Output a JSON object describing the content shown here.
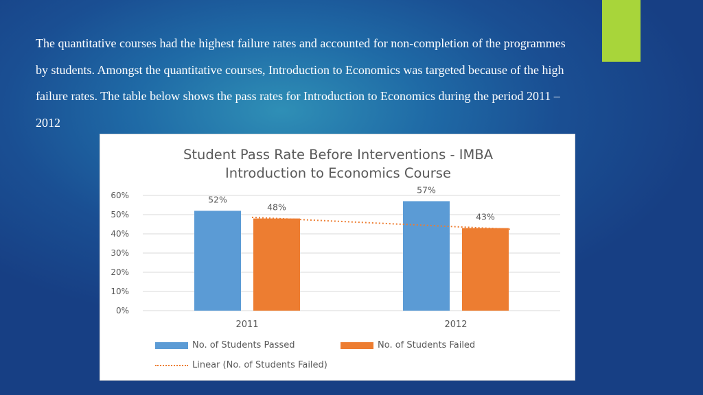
{
  "intro": {
    "lines": [
      "The quantitative courses had the highest failure rates and accounted for non-completion of the programmes",
      "by students. Amongst the quantitative courses, Introduction to Economics was targeted because of the high",
      "failure rates. The table below shows the pass rates for Introduction to Economics during the period 2011 –",
      "2012"
    ]
  },
  "colors": {
    "accent": "#a8d53a",
    "passed": "#5b9bd5",
    "failed": "#ed7d31",
    "gridline": "#d9d9d9",
    "text": "#595959"
  },
  "chart_data": {
    "type": "bar",
    "title_lines": [
      "Student Pass Rate Before Interventions - IMBA",
      "Introduction to Economics Course"
    ],
    "categories": [
      "2011",
      "2012"
    ],
    "series": [
      {
        "name": "No. of Students Passed",
        "values": [
          52,
          57
        ],
        "labels": [
          "52%",
          "57%"
        ],
        "color": "#5b9bd5"
      },
      {
        "name": "No. of Students Failed",
        "values": [
          48,
          43
        ],
        "labels": [
          "48%",
          "43%"
        ],
        "color": "#ed7d31"
      }
    ],
    "trendline": {
      "name": "Linear (No. of Students Failed)",
      "series": "No. of Students Failed",
      "style": "dotted"
    },
    "ylim": [
      0,
      60
    ],
    "yticks": [
      0,
      10,
      20,
      30,
      40,
      50,
      60
    ],
    "ytick_labels": [
      "0%",
      "10%",
      "20%",
      "30%",
      "40%",
      "50%",
      "60%"
    ],
    "grid": true,
    "legend_position": "bottom"
  }
}
